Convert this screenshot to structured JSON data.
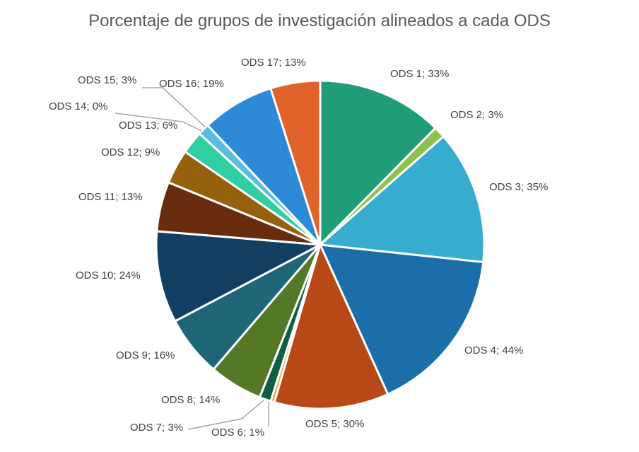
{
  "chart_data": {
    "type": "pie",
    "title": "Porcentaje de grupos de investigación alineados a cada ODS",
    "slices": [
      {
        "name": "ODS 1",
        "value": 33,
        "label": "ODS 1; 33%",
        "color": "#1f9c78"
      },
      {
        "name": "ODS 2",
        "value": 3,
        "label": "ODS 2; 3%",
        "color": "#8bc34a"
      },
      {
        "name": "ODS 3",
        "value": 35,
        "label": "ODS 3; 35%",
        "color": "#36adcf"
      },
      {
        "name": "ODS 4",
        "value": 44,
        "label": "ODS 4; 44%",
        "color": "#1b6ea8"
      },
      {
        "name": "ODS 5",
        "value": 30,
        "label": "ODS 5; 30%",
        "color": "#b84916"
      },
      {
        "name": "ODS 6",
        "value": 1,
        "label": "ODS 6; 1%",
        "color": "#f0a02c"
      },
      {
        "name": "ODS 7",
        "value": 3,
        "label": "ODS 7; 3%",
        "color": "#0f5e45"
      },
      {
        "name": "ODS 8",
        "value": 14,
        "label": "ODS 8; 14%",
        "color": "#557827"
      },
      {
        "name": "ODS 9",
        "value": 16,
        "label": "ODS 9; 16%",
        "color": "#1e6576"
      },
      {
        "name": "ODS 10",
        "value": 24,
        "label": "ODS 10; 24%",
        "color": "#123f61"
      },
      {
        "name": "ODS 11",
        "value": 13,
        "label": "ODS 11; 13%",
        "color": "#6a2c0e"
      },
      {
        "name": "ODS 12",
        "value": 9,
        "label": "ODS 12; 9%",
        "color": "#96610d"
      },
      {
        "name": "ODS 13",
        "value": 6,
        "label": "ODS 13; 6%",
        "color": "#2ecfa3"
      },
      {
        "name": "ODS 14",
        "value": 0,
        "label": "ODS 14; 0%",
        "color": "#1a9c8a"
      },
      {
        "name": "ODS 15",
        "value": 3,
        "label": "ODS 15; 3%",
        "color": "#58bde0"
      },
      {
        "name": "ODS 16",
        "value": 19,
        "label": "ODS 16; 19%",
        "color": "#2c8ad6"
      },
      {
        "name": "ODS 17",
        "value": 13,
        "label": "ODS 17; 13%",
        "color": "#e2622b"
      }
    ],
    "legend": "none",
    "data_labels": "outside"
  }
}
